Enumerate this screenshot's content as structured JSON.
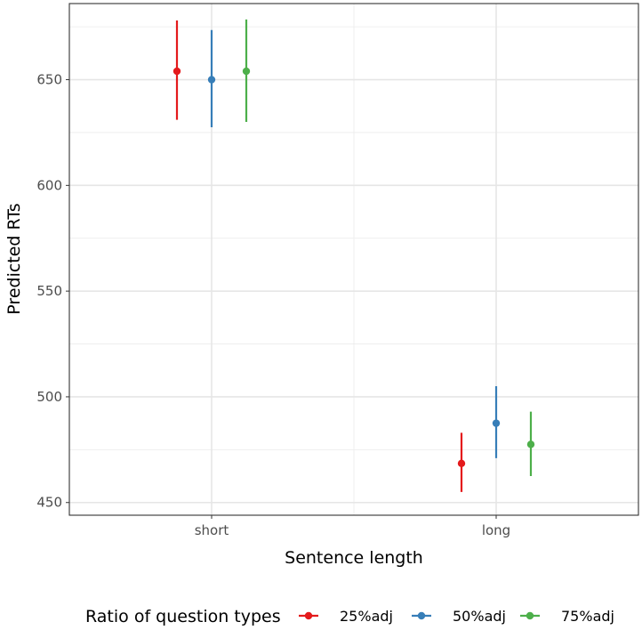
{
  "chart_data": {
    "type": "scatter",
    "title": "",
    "xlabel": "Sentence length",
    "ylabel": "Predicted RTs",
    "categories": [
      "short",
      "long"
    ],
    "ylim": [
      444,
      686
    ],
    "yticks": [
      450,
      500,
      550,
      600,
      650
    ],
    "grid": true,
    "legend": {
      "title": "Ratio of question types",
      "placement": "bottom"
    },
    "series": [
      {
        "name": "25%adj",
        "color": "#E41A1C",
        "values": [
          654,
          468.5
        ],
        "lower": [
          631,
          455
        ],
        "upper": [
          678,
          483
        ]
      },
      {
        "name": "50%adj",
        "color": "#377EB8",
        "values": [
          650,
          487.5
        ],
        "lower": [
          627.5,
          471
        ],
        "upper": [
          673.5,
          505
        ]
      },
      {
        "name": "75%adj",
        "color": "#4DAF4A",
        "values": [
          654,
          477.5
        ],
        "lower": [
          630,
          462.5
        ],
        "upper": [
          678.5,
          493
        ]
      }
    ]
  }
}
